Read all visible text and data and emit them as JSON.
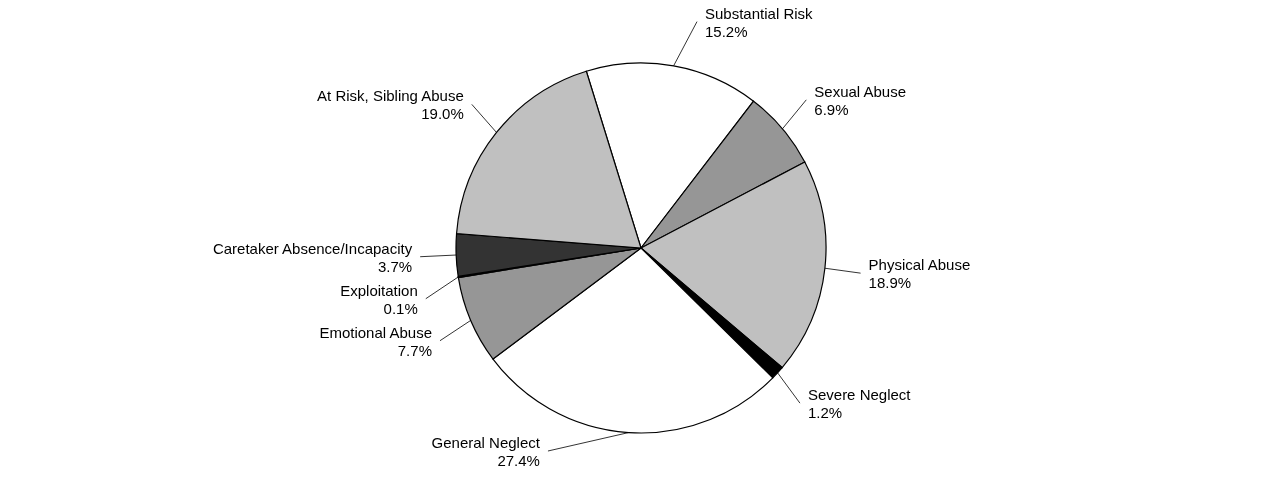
{
  "chart_data": {
    "type": "pie",
    "categories": [
      "Substantial Risk",
      "Sexual Abuse",
      "Physical Abuse",
      "Severe Neglect",
      "General Neglect",
      "Emotional Abuse",
      "Exploitation",
      "Caretaker Absence/Incapacity",
      "At Risk, Sibling Abuse"
    ],
    "values": [
      15.2,
      6.9,
      18.9,
      1.2,
      27.4,
      7.7,
      0.1,
      3.7,
      19.0
    ],
    "value_labels": [
      "15.2%",
      "6.9%",
      "18.9%",
      "1.2%",
      "27.4%",
      "7.7%",
      "0.1%",
      "3.7%",
      "19.0%"
    ],
    "colors": [
      "#ffffff",
      "#969696",
      "#c0c0c0",
      "#000000",
      "#ffffff",
      "#969696",
      "#808080",
      "#333333",
      "#c0c0c0"
    ]
  }
}
